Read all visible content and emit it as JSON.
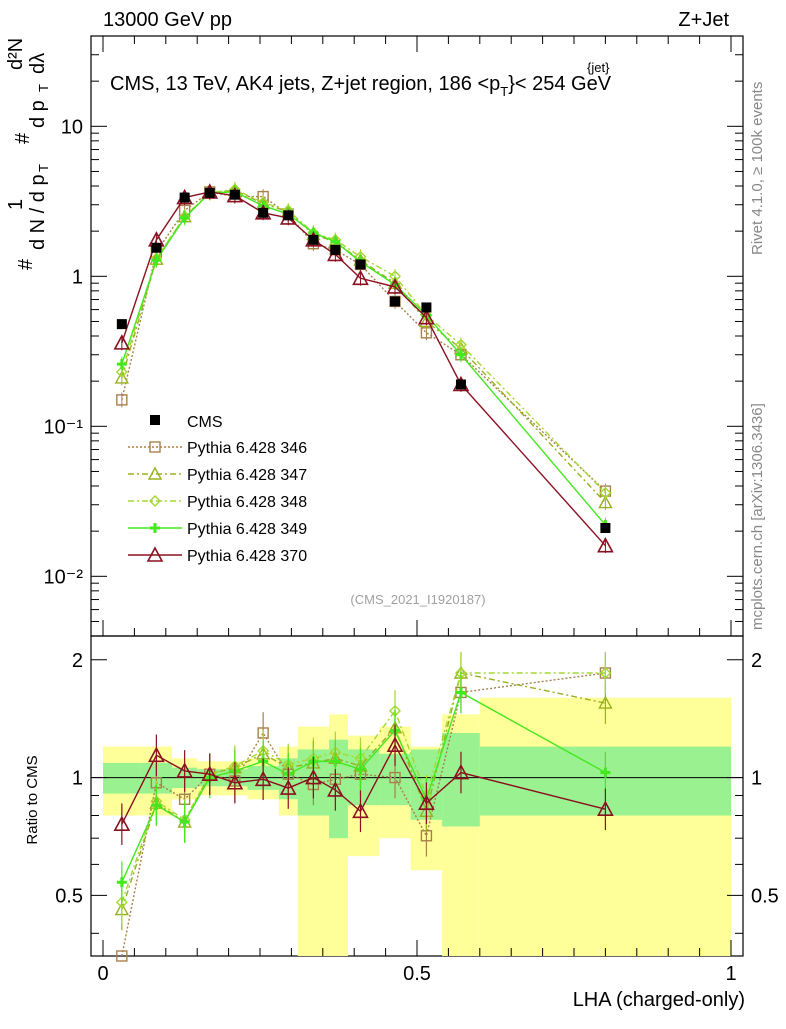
{
  "header": {
    "beam": "13000 GeV pp",
    "process": "Z+Jet",
    "plot_title": "CMS, 13 TeV, AK4 jets, Z+jet region, 186 <p",
    "plot_title_sup": "{jet}",
    "plot_title_sub": "T",
    "plot_title_end": "}< 254 GeV",
    "analysis_tag": "(CMS_2021_I1920187)",
    "side_rivet": "Rivet 4.1.0, ≥ 100k events",
    "side_mcplots": "mcplots.cern.ch [arXiv:1306.3436]"
  },
  "main_ylabel": {
    "hash": "#",
    "one": "1",
    "dn": "d N / d p",
    "dn_sub": "T",
    "hash2": "#",
    "d2n": "d²N",
    "dpdl": "d p",
    "dpdl_sub": "T",
    "dl": "dλ"
  },
  "main_yticks": [
    {
      "label": "10",
      "value": 10
    },
    {
      "label": "1",
      "value": 1
    },
    {
      "label": "10⁻¹",
      "value": 0.1
    },
    {
      "label": "10⁻²",
      "value": 0.01
    }
  ],
  "ratio_ylabel": "Ratio to CMS",
  "ratio_yticks": [
    {
      "label": "2",
      "value": 2
    },
    {
      "label": "1",
      "value": 1
    },
    {
      "label": "0.5",
      "value": 0.5
    }
  ],
  "xlabel": "LHA (charged-only)",
  "xticks": [
    {
      "label": "0",
      "value": 0
    },
    {
      "label": "0.5",
      "value": 0.5
    },
    {
      "label": "1",
      "value": 1
    }
  ],
  "chart_data": {
    "type": "line",
    "xlim": [
      0,
      1
    ],
    "ylim_main": [
      0.004,
      40
    ],
    "ylim_ratio": [
      0.35,
      2.3
    ],
    "x": [
      0.03,
      0.085,
      0.13,
      0.17,
      0.21,
      0.255,
      0.295,
      0.335,
      0.37,
      0.41,
      0.465,
      0.515,
      0.57,
      0.8
    ],
    "bin_edges": [
      0,
      0.06,
      0.11,
      0.15,
      0.19,
      0.23,
      0.28,
      0.31,
      0.36,
      0.39,
      0.44,
      0.49,
      0.54,
      0.6,
      1.0
    ],
    "data": {
      "name": "CMS",
      "values": [
        0.48,
        1.55,
        3.35,
        3.6,
        3.5,
        2.65,
        2.55,
        1.75,
        1.5,
        1.2,
        0.68,
        0.62,
        0.19,
        0.021
      ],
      "stat_band": [
        [
          0.93,
          1.07
        ],
        [
          0.93,
          1.07
        ],
        [
          0.95,
          1.05
        ],
        [
          0.95,
          1.05
        ],
        [
          0.95,
          1.05
        ],
        [
          0.95,
          1.05
        ],
        [
          0.95,
          1.05
        ],
        [
          0.93,
          1.07
        ],
        [
          0.93,
          1.07
        ],
        [
          0.9,
          1.1
        ],
        [
          0.9,
          1.1
        ],
        [
          0.9,
          1.1
        ],
        [
          0.9,
          1.1
        ],
        [
          0.9,
          1.1
        ]
      ],
      "ratio_band_green": [
        [
          0.91,
          1.09
        ],
        [
          0.91,
          1.09
        ],
        [
          0.94,
          1.06
        ],
        [
          0.95,
          1.05
        ],
        [
          0.95,
          1.05
        ],
        [
          0.93,
          1.07
        ],
        [
          0.88,
          1.12
        ],
        [
          0.8,
          1.18
        ],
        [
          0.7,
          1.25
        ],
        [
          0.85,
          1.18
        ],
        [
          0.85,
          1.15
        ],
        [
          0.78,
          1.18
        ],
        [
          0.75,
          1.3
        ],
        [
          0.8,
          1.2
        ]
      ],
      "ratio_band_yellow": [
        [
          0.8,
          1.2
        ],
        [
          0.8,
          1.2
        ],
        [
          0.88,
          1.12
        ],
        [
          0.9,
          1.1
        ],
        [
          0.9,
          1.1
        ],
        [
          0.88,
          1.12
        ],
        [
          0.8,
          1.2
        ],
        [
          0.35,
          1.35
        ],
        [
          0.35,
          1.45
        ],
        [
          0.63,
          1.28
        ],
        [
          0.7,
          1.35
        ],
        [
          0.58,
          1.2
        ],
        [
          0.35,
          1.45
        ],
        [
          0.35,
          1.6
        ]
      ]
    },
    "series": [
      {
        "name": "Pythia 6.428 346",
        "color": "#a8804a",
        "dash": "2,2",
        "marker": "square",
        "values": [
          0.15,
          1.45,
          2.75,
          3.65,
          3.4,
          3.4,
          2.6,
          1.65,
          1.5,
          1.2,
          0.68,
          0.42,
          0.3,
          0.037
        ],
        "ratio": [
          0.31,
          0.97,
          0.88,
          1.02,
          0.98,
          1.3,
          1.02,
          0.96,
          0.99,
          1.02,
          1.0,
          0.71,
          1.65,
          1.85
        ]
      },
      {
        "name": "Pythia 6.428 347",
        "color": "#98b020",
        "dash": "6,3,2,3",
        "marker": "triangle",
        "values": [
          0.21,
          1.3,
          2.5,
          3.6,
          3.75,
          3.05,
          2.7,
          1.9,
          1.7,
          1.28,
          0.9,
          0.5,
          0.33,
          0.031
        ],
        "ratio": [
          0.46,
          0.86,
          0.77,
          1.02,
          1.06,
          1.15,
          1.06,
          1.09,
          1.12,
          1.07,
          1.34,
          0.82,
          1.85,
          1.55
        ]
      },
      {
        "name": "Pythia 6.428 348",
        "color": "#a4d830",
        "dash": "6,3,2,3",
        "marker": "diamond",
        "values": [
          0.23,
          1.32,
          2.5,
          3.6,
          3.8,
          3.1,
          2.75,
          1.95,
          1.75,
          1.35,
          1.0,
          0.55,
          0.35,
          0.036
        ],
        "ratio": [
          0.48,
          0.87,
          0.78,
          1.02,
          1.07,
          1.17,
          1.08,
          1.12,
          1.16,
          1.12,
          1.48,
          0.9,
          1.85,
          1.85
        ]
      },
      {
        "name": "Pythia 6.428 349",
        "color": "#44e81e",
        "dash": "",
        "marker": "plus",
        "values": [
          0.26,
          1.28,
          2.45,
          3.6,
          3.65,
          2.95,
          2.6,
          1.95,
          1.7,
          1.25,
          0.88,
          0.55,
          0.3,
          0.022
        ],
        "ratio": [
          0.54,
          0.85,
          0.77,
          1.0,
          1.04,
          1.1,
          1.02,
          1.1,
          1.1,
          1.05,
          1.32,
          0.88,
          1.65,
          1.03
        ]
      },
      {
        "name": "Pythia 6.428 370",
        "color": "#8b1020",
        "dash": "",
        "marker": "triangle-open",
        "values": [
          0.36,
          1.75,
          3.35,
          3.65,
          3.45,
          2.65,
          2.45,
          1.75,
          1.4,
          0.97,
          0.85,
          0.53,
          0.19,
          0.016
        ],
        "ratio": [
          0.76,
          1.14,
          1.04,
          1.02,
          0.97,
          0.99,
          0.94,
          1.0,
          0.93,
          0.82,
          1.21,
          0.86,
          1.03,
          0.83
        ]
      }
    ]
  }
}
